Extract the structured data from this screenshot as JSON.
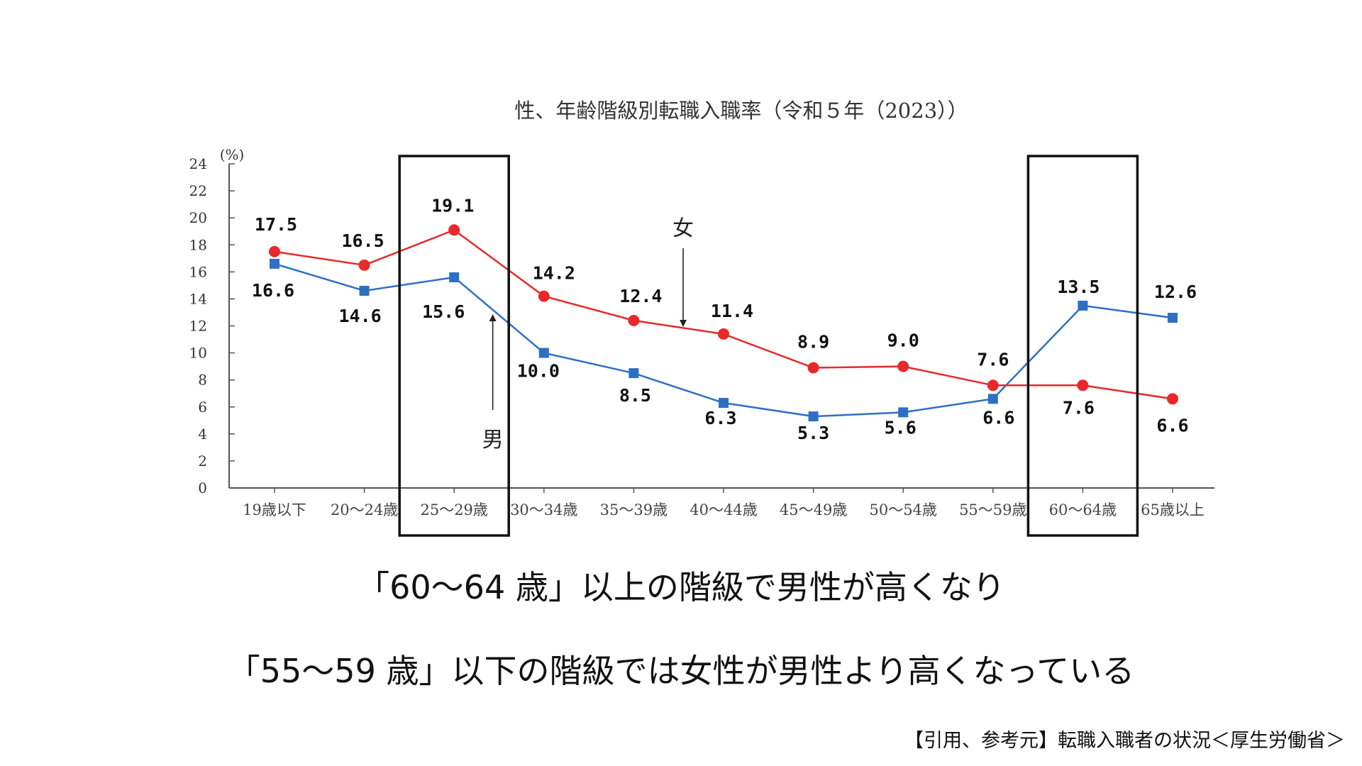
{
  "chart_data": {
    "type": "line",
    "title": "性、年齢階級別転職入職率（令和５年（2023））",
    "y_unit": "(%)",
    "ylim": [
      0,
      24
    ],
    "y_ticks": [
      0,
      2,
      4,
      6,
      8,
      10,
      12,
      14,
      16,
      18,
      20,
      22,
      24
    ],
    "grid": false,
    "categories": [
      "19歳以下",
      "20～24歳",
      "25～29歳",
      "30～34歳",
      "35～39歳",
      "40～44歳",
      "45～49歳",
      "50～54歳",
      "55～59歳",
      "60～64歳",
      "65歳以上"
    ],
    "series": [
      {
        "name": "女",
        "color": "#e8292b",
        "marker": "circle",
        "values": [
          17.5,
          16.5,
          19.1,
          14.2,
          12.4,
          11.4,
          8.9,
          9.0,
          7.6,
          7.6,
          6.6
        ],
        "labels": [
          "17.5",
          "16.5",
          "19.1",
          "14.2",
          "12.4",
          "11.4",
          "8.9",
          "9.0",
          "7.6",
          "7.6",
          "6.6"
        ]
      },
      {
        "name": "男",
        "color": "#2e6fc4",
        "marker": "square",
        "values": [
          16.6,
          14.6,
          15.6,
          10.0,
          8.5,
          6.3,
          5.3,
          5.6,
          6.6,
          13.5,
          12.6
        ],
        "labels": [
          "16.6",
          "14.6",
          "15.6",
          "10.0",
          "8.5",
          "6.3",
          "5.3",
          "5.6",
          "6.6",
          "13.5",
          "12.6"
        ]
      }
    ],
    "highlight_categories": [
      "25～29歳",
      "60～64歳"
    ]
  },
  "captions": {
    "line1": "「60～64 歳」以上の階級で男性が高くなり",
    "line2": "「55～59 歳」以下の階級では女性が男性より高くなっている"
  },
  "citation": "【引用、参考元】転職入職者の状況＜厚生労働省＞"
}
